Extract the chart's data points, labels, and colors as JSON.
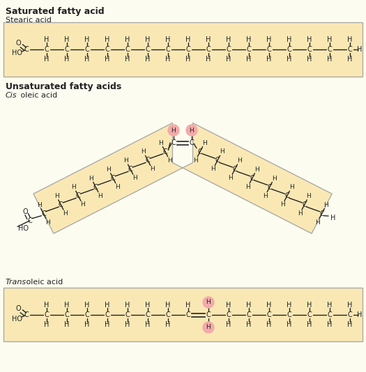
{
  "bg_color": "#FDFCF0",
  "box_color": "#FAE8B4",
  "box_edge_color": "#AAAAAA",
  "text_color": "#222222",
  "highlight_color": "#F4AAAA",
  "title_saturated": "Saturated fatty acid",
  "title_unsaturated": "Unsaturated fatty acids",
  "label_stearic": "Stearic acid",
  "label_cis_italic": "Cis",
  "label_cis_rest": " oleic acid",
  "label_trans_italic": "Trans",
  "label_trans_rest": " oleic acid"
}
